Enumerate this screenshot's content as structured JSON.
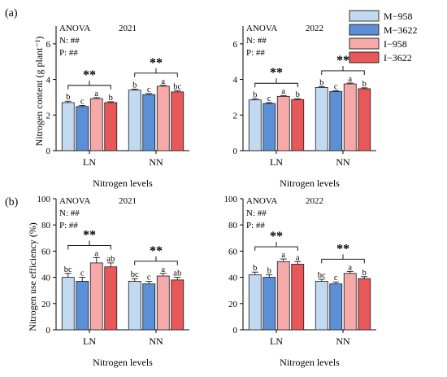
{
  "legend": [
    {
      "name": "M−958",
      "color": "#c2d9f2"
    },
    {
      "name": "M−3622",
      "color": "#5b8fd6"
    },
    {
      "name": "I−958",
      "color": "#f6a9a9"
    },
    {
      "name": "I−3622",
      "color": "#e8585a"
    }
  ],
  "panels": [
    {
      "label": "(a)",
      "ylabel": "Nitrogen content (g plant⁻¹)"
    },
    {
      "label": "(b)",
      "ylabel": "Nitrogen use efficiency (%)"
    }
  ],
  "chart_data": [
    {
      "type": "bar",
      "panel": "(a)",
      "year_label": "2021",
      "anova": [
        "ANOVA",
        "N: ##",
        "P: ##"
      ],
      "xlabel": "Nitrogen levels",
      "ylabel": "Nitrogen content (g plant⁻¹)",
      "categories": [
        "LN",
        "NN"
      ],
      "ylim": [
        0,
        7
      ],
      "yticks": [
        0,
        2,
        4,
        6
      ],
      "series": [
        {
          "name": "M−958",
          "values": [
            2.7,
            3.4
          ],
          "err": [
            0.08,
            0.06
          ],
          "letters": [
            "b",
            "b"
          ]
        },
        {
          "name": "M−3622",
          "values": [
            2.48,
            3.15
          ],
          "err": [
            0.06,
            0.06
          ],
          "letters": [
            "c",
            "c"
          ]
        },
        {
          "name": "I−958",
          "values": [
            2.92,
            3.62
          ],
          "err": [
            0.06,
            0.05
          ],
          "letters": [
            "a",
            "a"
          ]
        },
        {
          "name": "I−3622",
          "values": [
            2.7,
            3.3
          ],
          "err": [
            0.05,
            0.06
          ],
          "letters": [
            "b",
            "bc"
          ]
        }
      ],
      "significance": [
        "**",
        "**"
      ]
    },
    {
      "type": "bar",
      "panel": "(a)",
      "year_label": "2022",
      "anova": [
        "ANOVA",
        "N: ##",
        "P: ##"
      ],
      "xlabel": "Nitrogen levels",
      "ylabel": "",
      "categories": [
        "LN",
        "NN"
      ],
      "ylim": [
        0,
        7
      ],
      "yticks": [
        0,
        2,
        4,
        6
      ],
      "series": [
        {
          "name": "M−958",
          "values": [
            2.85,
            3.55
          ],
          "err": [
            0.05,
            0.05
          ],
          "letters": [
            "b",
            "b"
          ]
        },
        {
          "name": "M−3622",
          "values": [
            2.65,
            3.32
          ],
          "err": [
            0.05,
            0.05
          ],
          "letters": [
            "c",
            "c"
          ]
        },
        {
          "name": "I−958",
          "values": [
            3.05,
            3.75
          ],
          "err": [
            0.05,
            0.05
          ],
          "letters": [
            "a",
            "a"
          ]
        },
        {
          "name": "I−3622",
          "values": [
            2.87,
            3.48
          ],
          "err": [
            0.05,
            0.05
          ],
          "letters": [
            "b",
            "b"
          ]
        }
      ],
      "significance": [
        "**",
        "**"
      ]
    },
    {
      "type": "bar",
      "panel": "(b)",
      "year_label": "2021",
      "anova": [
        "ANOVA",
        "N: ##",
        "P: ##"
      ],
      "xlabel": "Nitrogen levels",
      "ylabel": "Nitrogen use efficiency (%)",
      "categories": [
        "LN",
        "NN"
      ],
      "ylim": [
        0,
        100
      ],
      "yticks": [
        0,
        20,
        40,
        60,
        80,
        100
      ],
      "series": [
        {
          "name": "M−958",
          "values": [
            40,
            37
          ],
          "err": [
            3,
            2
          ],
          "letters": [
            "bc",
            "bc"
          ]
        },
        {
          "name": "M−3622",
          "values": [
            37,
            35
          ],
          "err": [
            3,
            2
          ],
          "letters": [
            "c",
            "c"
          ]
        },
        {
          "name": "I−958",
          "values": [
            51,
            41
          ],
          "err": [
            4,
            2
          ],
          "letters": [
            "a",
            "a"
          ]
        },
        {
          "name": "I−3622",
          "values": [
            48,
            38
          ],
          "err": [
            3,
            2
          ],
          "letters": [
            "ab",
            "ab"
          ]
        }
      ],
      "significance": [
        "**",
        "**"
      ]
    },
    {
      "type": "bar",
      "panel": "(b)",
      "year_label": "2022",
      "anova": [
        "ANOVA",
        "N: ##",
        "P: ##"
      ],
      "xlabel": "Nitrogen levels",
      "ylabel": "",
      "categories": [
        "LN",
        "NN"
      ],
      "ylim": [
        0,
        100
      ],
      "yticks": [
        0,
        20,
        40,
        60,
        80,
        100
      ],
      "series": [
        {
          "name": "M−958",
          "values": [
            42,
            37
          ],
          "err": [
            2,
            1.5
          ],
          "letters": [
            "b",
            "bc"
          ]
        },
        {
          "name": "M−3622",
          "values": [
            40,
            35
          ],
          "err": [
            2,
            1.5
          ],
          "letters": [
            "b",
            "c"
          ]
        },
        {
          "name": "I−958",
          "values": [
            52,
            43
          ],
          "err": [
            2,
            1.5
          ],
          "letters": [
            "a",
            "a"
          ]
        },
        {
          "name": "I−3622",
          "values": [
            50,
            39
          ],
          "err": [
            2,
            1.5
          ],
          "letters": [
            "a",
            "b"
          ]
        }
      ],
      "significance": [
        "**",
        "**"
      ]
    }
  ]
}
